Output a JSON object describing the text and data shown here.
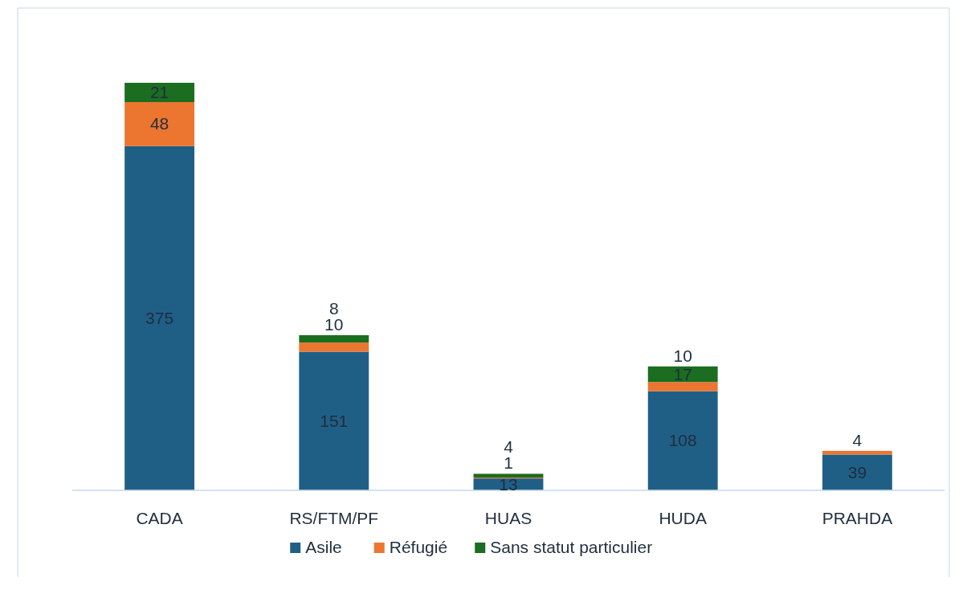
{
  "chart_data": {
    "type": "bar",
    "stacked": true,
    "data_labels": true,
    "legend": "bottom",
    "categories": [
      "CADA",
      "RS/FTM/PF",
      "HUAS",
      "HUDA",
      "PRAHDA"
    ],
    "series": [
      {
        "name": "Asile",
        "color": "#1f5f86",
        "values": [
          375,
          151,
          13,
          108,
          39
        ]
      },
      {
        "name": "Réfugié",
        "color": "#ec7530",
        "values": [
          48,
          10,
          1,
          10,
          4
        ]
      },
      {
        "name": "Sans statut particulier",
        "color": "#1b6d1f",
        "values": [
          21,
          8,
          4,
          17,
          null
        ]
      }
    ]
  }
}
